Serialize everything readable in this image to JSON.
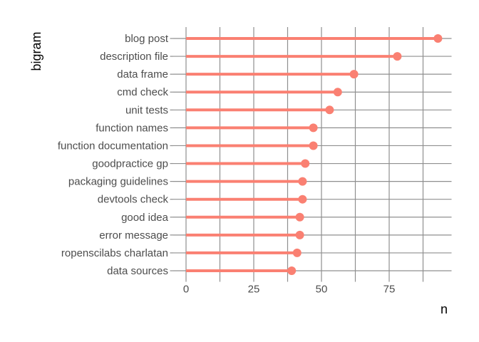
{
  "figure": {
    "background": "#ffffff",
    "accent_color": "#fa8072",
    "grid_color": "#8f8f8f",
    "axis_text_color": "#4d4d4d",
    "title_color": "#000000"
  },
  "chart_data": {
    "type": "bar",
    "variant": "lollipop",
    "orientation": "horizontal",
    "title": "",
    "xlabel": "n",
    "ylabel": "bigram",
    "categories": [
      "blog post",
      "description file",
      "data frame",
      "cmd check",
      "unit tests",
      "function names",
      "function documentation",
      "goodpractice gp",
      "packaging guidelines",
      "devtools check",
      "good idea",
      "error message",
      "ropenscilabs charlatan",
      "data sources"
    ],
    "values": [
      93,
      78,
      62,
      56,
      53,
      47,
      47,
      44,
      43,
      43,
      42,
      42,
      41,
      39
    ],
    "category_order": "top-to-bottom descending by n",
    "xlim": [
      0,
      98
    ],
    "x_tick_values": [
      0,
      25,
      50,
      75
    ],
    "x_tick_labels": [
      "0",
      "25",
      "50",
      "75"
    ],
    "x_gridline_values": [
      0,
      12.5,
      25,
      37.5,
      50,
      62.5,
      75,
      87.5
    ],
    "grid": true,
    "legend": "none"
  }
}
